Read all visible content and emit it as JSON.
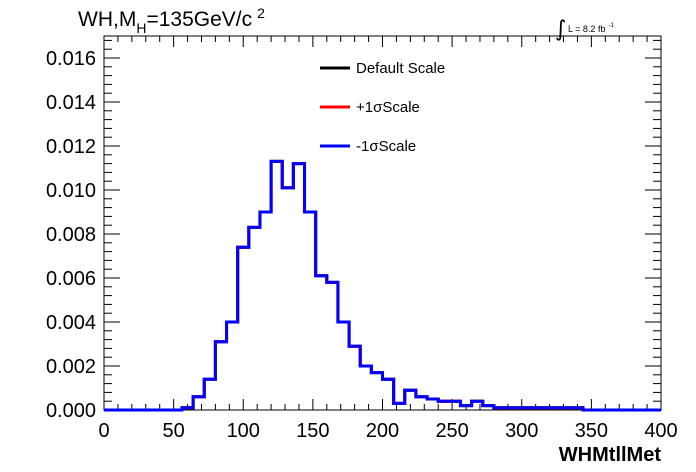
{
  "chart_data": {
    "type": "line",
    "title": {
      "main": "WH,M",
      "sub": "H",
      "rest": "=135GeV/c",
      "sup": "2"
    },
    "luminosity": {
      "integral": "∫",
      "text": "L = 8.2 fb",
      "sup": "-1"
    },
    "xlabel": "WHMtllMet",
    "ylabel": "",
    "xlim": [
      0,
      400
    ],
    "ylim": [
      0,
      0.017
    ],
    "x_ticks": [
      "0",
      "50",
      "100",
      "150",
      "200",
      "250",
      "300",
      "350",
      "400"
    ],
    "y_ticks": [
      "0.000",
      "0.002",
      "0.004",
      "0.006",
      "0.008",
      "0.010",
      "0.012",
      "0.014",
      "0.016"
    ],
    "bin_width": 8,
    "bin_edges_start": 0,
    "series": [
      {
        "name": "Default Scale",
        "color": "#000000",
        "values": [
          0,
          0,
          0,
          0,
          0,
          0,
          0,
          0.0001,
          0.0006,
          0.0014,
          0.0031,
          0.004,
          0.0074,
          0.0083,
          0.009,
          0.0113,
          0.0101,
          0.0112,
          0.009,
          0.0061,
          0.0058,
          0.004,
          0.0029,
          0.002,
          0.0017,
          0.0014,
          0.0003,
          0.0009,
          0.0006,
          0.0005,
          0.0004,
          0.0004,
          0.0002,
          0.0004,
          0.0002,
          0.0001,
          0.0001,
          0.0001,
          0.0001,
          0.0001,
          0.0001,
          0.0001,
          0.0001,
          0.0,
          0.0,
          0.0,
          0.0,
          0.0,
          0.0,
          0.0
        ]
      },
      {
        "name": "+1σScale",
        "color": "#ff0000",
        "values": [
          0,
          0,
          0,
          0,
          0,
          0,
          0,
          0.0001,
          0.0006,
          0.0014,
          0.0031,
          0.004,
          0.0074,
          0.0083,
          0.009,
          0.0113,
          0.0101,
          0.0112,
          0.009,
          0.0061,
          0.0058,
          0.004,
          0.0029,
          0.002,
          0.0017,
          0.0014,
          0.0003,
          0.0009,
          0.0006,
          0.0005,
          0.0004,
          0.0004,
          0.0002,
          0.0004,
          0.0002,
          0.0001,
          0.0001,
          0.0001,
          0.0001,
          0.0001,
          0.0001,
          0.0001,
          0.0001,
          0.0,
          0.0,
          0.0,
          0.0,
          0.0,
          0.0,
          0.0
        ]
      },
      {
        "name": "-1σScale",
        "color": "#0000ff",
        "values": [
          0,
          0,
          0,
          0,
          0,
          0,
          0,
          0.0001,
          0.0006,
          0.0014,
          0.0031,
          0.004,
          0.0074,
          0.0083,
          0.009,
          0.0113,
          0.0101,
          0.0112,
          0.009,
          0.0061,
          0.0058,
          0.004,
          0.0029,
          0.002,
          0.0017,
          0.0014,
          0.0003,
          0.0009,
          0.0006,
          0.0005,
          0.0004,
          0.0004,
          0.0002,
          0.0004,
          0.0002,
          0.0001,
          0.0001,
          0.0001,
          0.0001,
          0.0001,
          0.0001,
          0.0001,
          0.0001,
          0.0,
          0.0,
          0.0,
          0.0,
          0.0,
          0.0,
          0.0
        ]
      }
    ],
    "legend_placement": "top-center",
    "grid": false
  }
}
